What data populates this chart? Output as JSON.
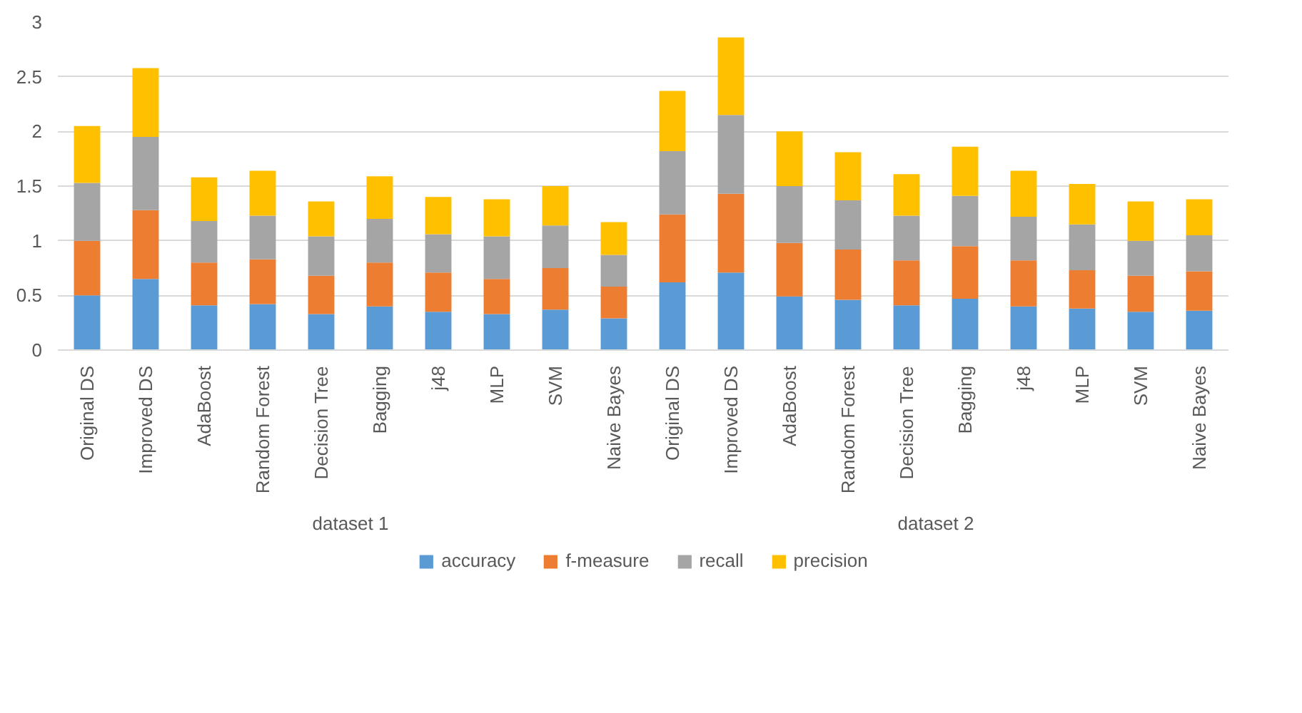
{
  "chart_data": {
    "type": "bar",
    "stacked": true,
    "categories": [
      "Original DS",
      "Improved DS",
      "AdaBoost",
      "Random Forest",
      "Decision Tree",
      "Bagging",
      "j48",
      "MLP",
      "SVM",
      "Naive Bayes",
      "Original DS",
      "Improved DS",
      "AdaBoost",
      "Random Forest",
      "Decision Tree",
      "Bagging",
      "j48",
      "MLP",
      "SVM",
      "Naive Bayes"
    ],
    "annotations": [
      "dataset 1",
      "dataset 2"
    ],
    "series": [
      {
        "name": "accuracy",
        "color": "#5b9bd5",
        "values": [
          0.5,
          0.65,
          0.41,
          0.42,
          0.33,
          0.4,
          0.35,
          0.33,
          0.37,
          0.29,
          0.62,
          0.71,
          0.49,
          0.46,
          0.41,
          0.47,
          0.4,
          0.38,
          0.35,
          0.36
        ]
      },
      {
        "name": "f-measure",
        "color": "#ed7d31",
        "values": [
          0.5,
          0.63,
          0.39,
          0.41,
          0.35,
          0.4,
          0.36,
          0.32,
          0.38,
          0.29,
          0.62,
          0.72,
          0.49,
          0.46,
          0.41,
          0.48,
          0.42,
          0.35,
          0.33,
          0.36
        ]
      },
      {
        "name": "recall",
        "color": "#a5a5a5",
        "values": [
          0.53,
          0.67,
          0.38,
          0.4,
          0.36,
          0.4,
          0.35,
          0.39,
          0.39,
          0.29,
          0.58,
          0.72,
          0.52,
          0.45,
          0.41,
          0.46,
          0.4,
          0.42,
          0.32,
          0.33
        ]
      },
      {
        "name": "precision",
        "color": "#ffc000",
        "values": [
          0.52,
          0.63,
          0.4,
          0.41,
          0.32,
          0.39,
          0.34,
          0.34,
          0.36,
          0.3,
          0.55,
          0.71,
          0.5,
          0.44,
          0.38,
          0.45,
          0.42,
          0.37,
          0.36,
          0.33
        ]
      }
    ],
    "ylim": [
      0,
      3
    ],
    "yticks": [
      0,
      0.5,
      1,
      1.5,
      2,
      2.5,
      3
    ],
    "grid": "y",
    "legend": "bottom"
  }
}
